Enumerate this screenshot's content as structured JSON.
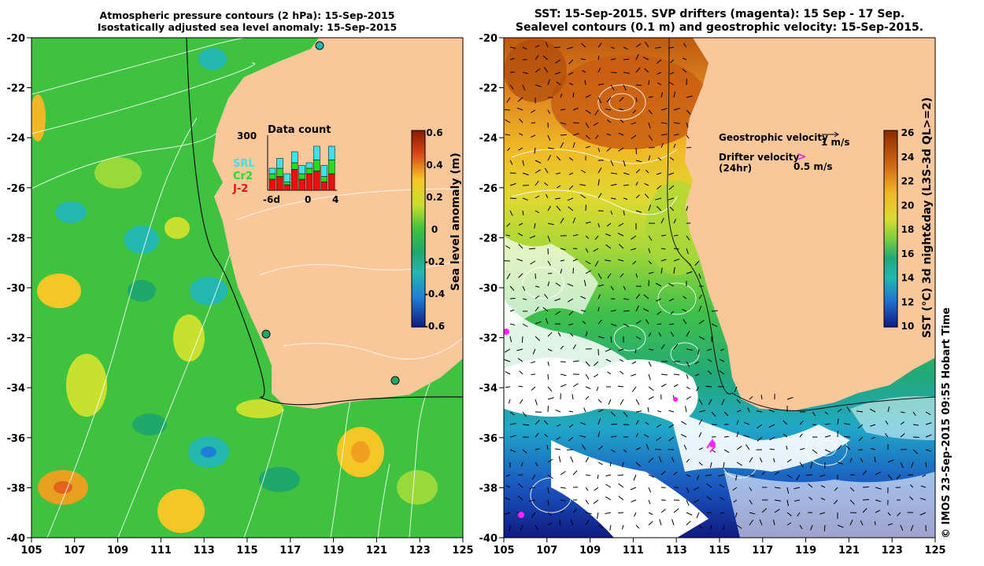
{
  "left_panel": {
    "title_line1": "Atmospheric pressure contours (2 hPa): 15-Sep-2015",
    "title_line2": "Isostatically adjusted sea level anomaly: 15-Sep-2015",
    "x_ticks": [
      "105",
      "107",
      "109",
      "111",
      "113",
      "115",
      "117",
      "119",
      "121",
      "123",
      "125"
    ],
    "y_ticks": [
      "-20",
      "-22",
      "-24",
      "-26",
      "-28",
      "-30",
      "-32",
      "-34",
      "-36",
      "-38",
      "-40"
    ],
    "colorbar": {
      "label": "Sea level anomaly (m)",
      "ticks": [
        "0.6",
        "0.4",
        "0.2",
        "0",
        "-0.2",
        "-0.4",
        "-0.6"
      ],
      "colors": [
        "#8b1a00",
        "#d9471a",
        "#f08a1a",
        "#f5c726",
        "#e8e62a",
        "#99d93a",
        "#3fc23f",
        "#1fa86a",
        "#22b8b0",
        "#1f7fd6",
        "#1a3fb0",
        "#101a80"
      ]
    },
    "inset": {
      "title": "Data count",
      "y_label": "300",
      "x_labels": [
        "-6d",
        "0",
        "4"
      ],
      "legend": [
        {
          "name": "SRL",
          "color": "#40e0e8"
        },
        {
          "name": "Cr2",
          "color": "#22dd22"
        },
        {
          "name": "J-2",
          "color": "#e81010"
        }
      ],
      "bars": [
        {
          "srl": 0.1,
          "cr2": 0.1,
          "j2": 0.2
        },
        {
          "srl": 0.18,
          "cr2": 0.15,
          "j2": 0.25
        },
        {
          "srl": 0.15,
          "cr2": 0.05,
          "j2": 0.1
        },
        {
          "srl": 0.2,
          "cr2": 0.12,
          "j2": 0.38
        },
        {
          "srl": 0.15,
          "cr2": 0.1,
          "j2": 0.2
        },
        {
          "srl": 0.1,
          "cr2": 0.1,
          "j2": 0.3
        },
        {
          "srl": 0.25,
          "cr2": 0.2,
          "j2": 0.35
        },
        {
          "srl": 0.2,
          "cr2": 0.1,
          "j2": 0.15
        },
        {
          "srl": 0.25,
          "cr2": 0.25,
          "j2": 0.3
        }
      ]
    }
  },
  "right_panel": {
    "title_line1": "SST: 15-Sep-2015. SVP drifters (magenta): 15 Sep - 17 Sep.",
    "title_line2": "Sealevel contours (0.1 m) and geostrophic velocity: 15-Sep-2015.",
    "x_ticks": [
      "105",
      "107",
      "109",
      "111",
      "113",
      "115",
      "117",
      "119",
      "121",
      "123",
      "125"
    ],
    "y_ticks": [
      "-20",
      "-22",
      "-24",
      "-26",
      "-28",
      "-30",
      "-32",
      "-34",
      "-36",
      "-38",
      "-40"
    ],
    "legend": {
      "geostrophic_label": "Geostrophic velocity",
      "geostrophic_scale": "1 m/s",
      "drifter_label": "Drifter velocity",
      "drifter_sub": "(24hr)",
      "drifter_scale": "0.5 m/s",
      "drifter_symbol": ">"
    },
    "colorbar": {
      "label": "SST (°C) 3d night&day (L3S-3d QL>=2)",
      "ticks": [
        "26",
        "24",
        "22",
        "20",
        "18",
        "16",
        "14",
        "12",
        "10"
      ],
      "colors": [
        "#8b2b00",
        "#c85a10",
        "#e88a20",
        "#f0b825",
        "#e0d830",
        "#a8d838",
        "#55c34a",
        "#22a87a",
        "#20b8b0",
        "#1f88d8",
        "#1a55c0",
        "#101a80"
      ]
    }
  },
  "credit": "© IMOS 23-Sep-2015 09:55 Hobart Time",
  "colors": {
    "land": "#fac79b",
    "sst_warm": "#c8641a",
    "sla_green": "#3fc23f",
    "drifter": "#ff22ff"
  }
}
